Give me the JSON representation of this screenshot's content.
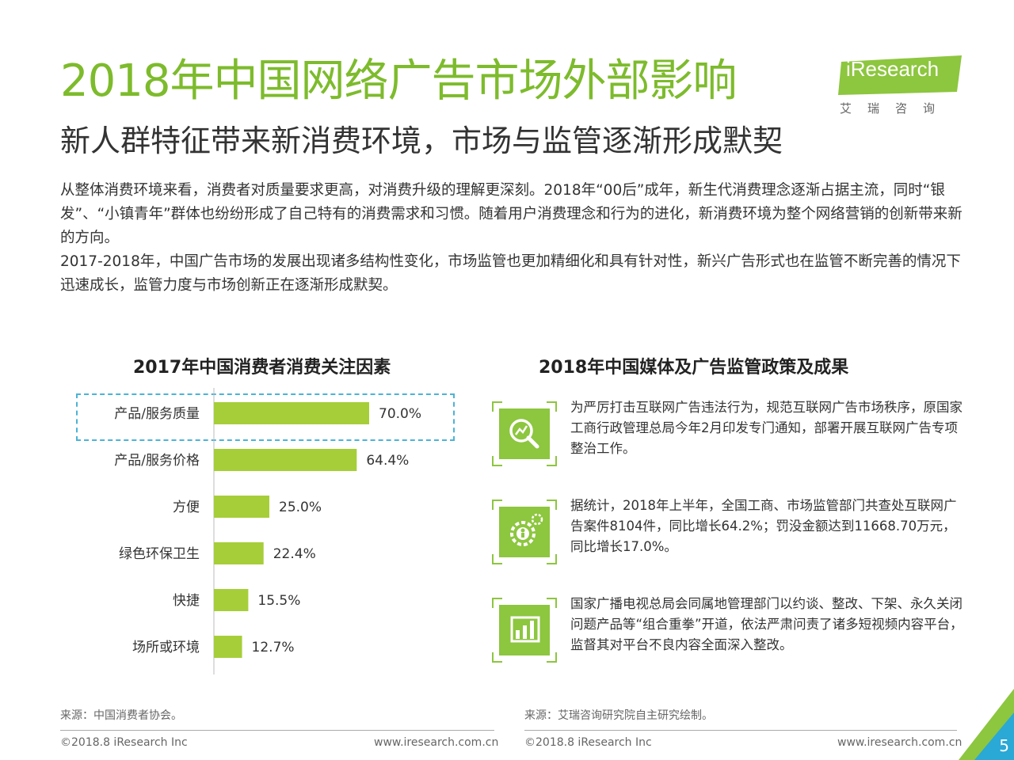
{
  "header": {
    "title": "2018年中国网络广告市场外部影响",
    "subtitle": "新人群特征带来新消费环境，市场与监管逐渐形成默契",
    "logo_text": "iResearch",
    "logo_cn": "艾瑞咨询"
  },
  "intro": {
    "p1": "从整体消费环境来看，消费者对质量要求更高，对消费升级的理解更深刻。2018年“00后”成年，新生代消费理念逐渐占据主流，同时“银发”、“小镇青年”群体也纷纷形成了自己特有的消费需求和习惯。随着用户消费理念和行为的进化，新消费环境为整个网络营销的创新带来新的方向。",
    "p2": "2017-2018年，中国广告市场的发展出现诸多结构性变化，市场监管也更加精细化和具有针对性，新兴广告形式也在监管不断完善的情况下迅速成长，监管力度与市场创新正在逐渐形成默契。"
  },
  "chart_data": {
    "type": "bar",
    "orientation": "horizontal",
    "title": "2017年中国消费者消费关注因素",
    "categories": [
      "产品/服务质量",
      "产品/服务价格",
      "方便",
      "绿色环保卫生",
      "快捷",
      "场所或环境"
    ],
    "values": [
      70.0,
      64.4,
      25.0,
      22.4,
      15.5,
      12.7
    ],
    "value_labels": [
      "70.0%",
      "64.4%",
      "25.0%",
      "22.4%",
      "15.5%",
      "12.7%"
    ],
    "xlim": [
      0,
      100
    ],
    "highlight_index": 0,
    "bar_color": "#a6ce39",
    "grid": false
  },
  "policy": {
    "title": "2018年中国媒体及广告监管政策及成果",
    "items": [
      {
        "icon": "search-chart-icon",
        "text": "为严厉打击互联网广告违法行为，规范互联网广告市场秩序，原国家工商行政管理总局今年2月印发专门通知，部署开展互联网广告专项整治工作。"
      },
      {
        "icon": "gear-person-icon",
        "text": "据统计，2018年上半年，全国工商、市场监管部门共查处互联网广告案件8104件，同比增长64.2%；罚没金额达到11668.70万元，同比增长17.0%。"
      },
      {
        "icon": "bar-chart-icon",
        "text": "国家广播电视总局会同属地管理部门以约谈、整改、下架、永久关闭问题产品等“组合重拳”开道，依法严肃问责了诸多短视频内容平台，监督其对平台不良内容全面深入整改。"
      }
    ]
  },
  "footer": {
    "source_left": "来源：中国消费者协会。",
    "source_right": "来源：艾瑞咨询研究院自主研究绘制。",
    "copyright_left": "©2018.8 iResearch Inc",
    "url_left": "www.iresearch.com.cn",
    "copyright_right": "©2018.8 iResearch Inc",
    "url_right": "www.iresearch.com.cn",
    "page_number": "5"
  },
  "colors": {
    "accent_green": "#7dbb2c",
    "bar_green": "#a6ce39",
    "icon_green": "#8dc63f",
    "highlight_blue": "#4bb3d6"
  }
}
